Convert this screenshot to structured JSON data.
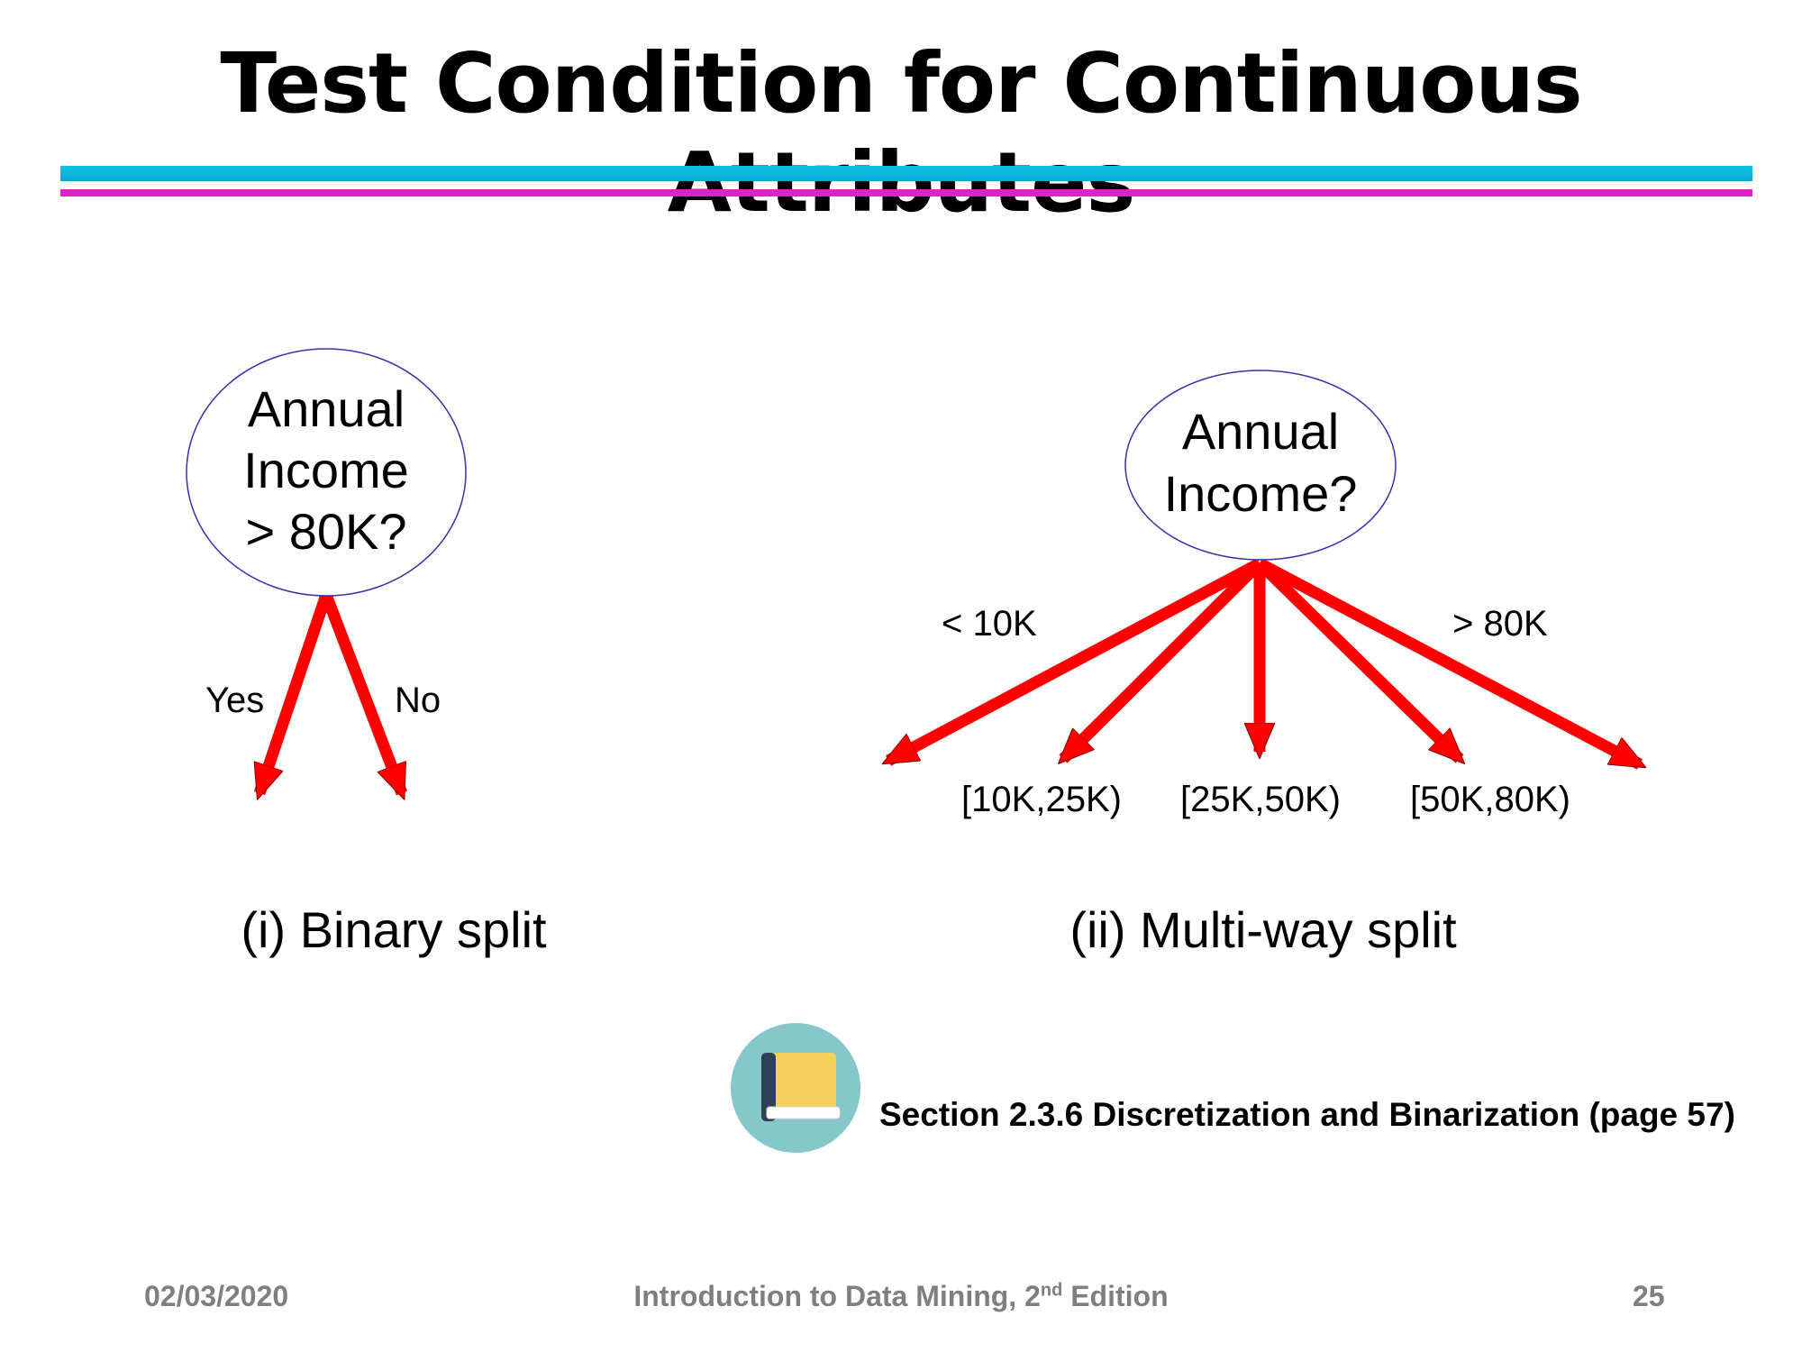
{
  "slide": {
    "title": "Test Condition for Continuous Attributes"
  },
  "binary_split": {
    "node_lines": [
      "Annual",
      "Income",
      "> 80K?"
    ],
    "edges": [
      "Yes",
      "No"
    ],
    "caption": "(i) Binary split"
  },
  "multiway_split": {
    "node_lines": [
      "Annual",
      "Income?"
    ],
    "edges": [
      "< 10K",
      "[10K,25K)",
      "[25K,50K)",
      "[50K,80K)",
      "> 80K"
    ],
    "caption": "(ii) Multi-way split"
  },
  "reference": {
    "icon": "book-icon",
    "text": "Section 2.3.6 Discretization and Binarization (page 57)"
  },
  "footer": {
    "date": "02/03/2020",
    "book_title_prefix": "Introduction to Data Mining, 2",
    "book_title_superscript": "nd",
    "book_title_suffix": " Edition",
    "page_number": "25"
  },
  "colors": {
    "arrow": "#ff0000",
    "node_outline": "#3333aa",
    "rule_top": "#12c3e6",
    "rule_bottom": "#e020c8",
    "icon_circle": "#86c7c9",
    "book_cover": "#f7cf5c",
    "book_spine": "#2f4155"
  }
}
